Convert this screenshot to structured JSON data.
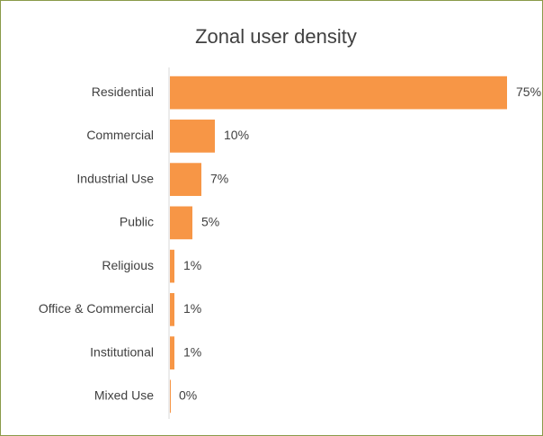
{
  "chart_data": {
    "type": "bar",
    "orientation": "horizontal",
    "title": "Zonal user density",
    "categories": [
      "Residential",
      "Commercial",
      "Industrial Use",
      "Public",
      "Religious",
      "Office & Commercial",
      "Institutional",
      "Mixed Use"
    ],
    "values": [
      75,
      10,
      7,
      5,
      1,
      1,
      1,
      0
    ],
    "value_labels": [
      "75%",
      "10%",
      "7%",
      "5%",
      "1%",
      "1%",
      "1%",
      "0%"
    ],
    "color": "#f79646",
    "xlim": [
      0,
      75
    ]
  }
}
